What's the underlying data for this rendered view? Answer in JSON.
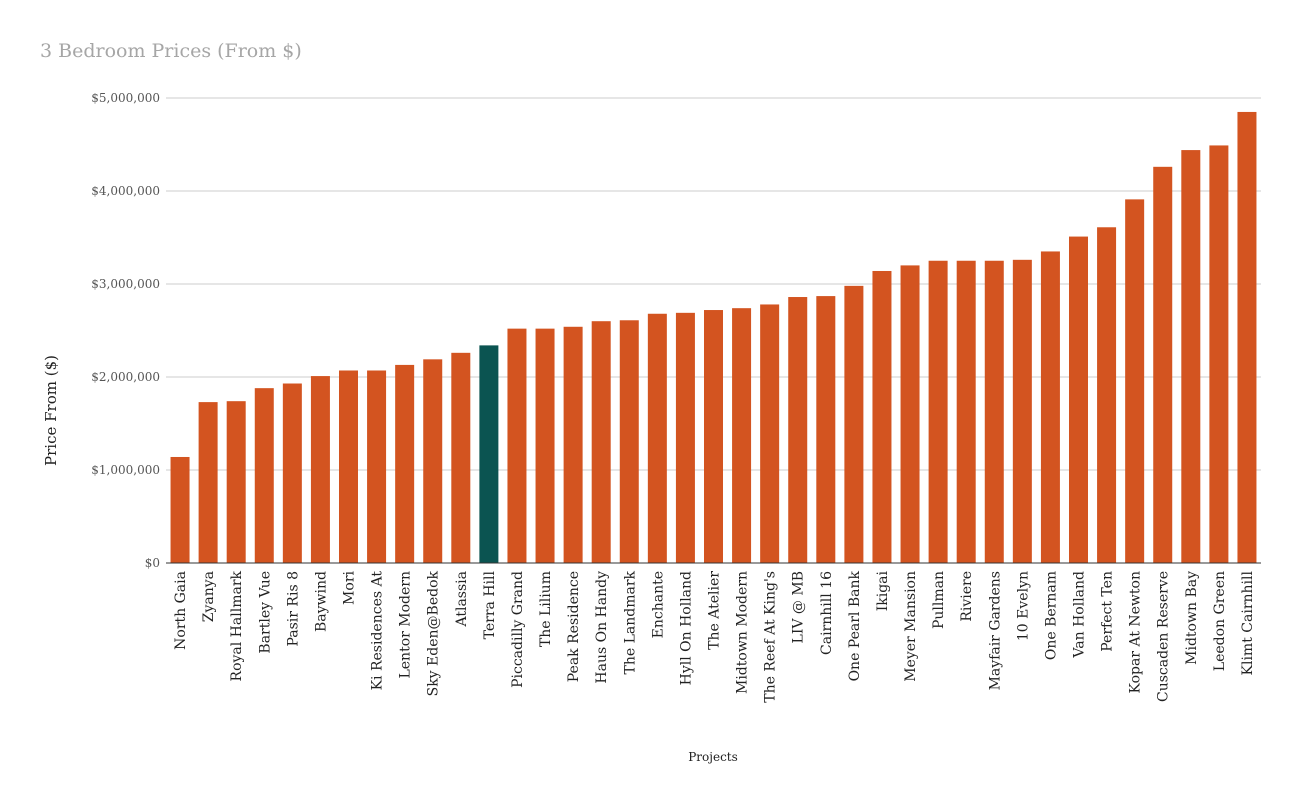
{
  "chart_data": {
    "type": "bar",
    "title": "3 Bedroom Prices (From $)",
    "xlabel": "Projects",
    "ylabel": "Price From ($)",
    "ylim": [
      0,
      5000000
    ],
    "yticks": [
      0,
      1000000,
      2000000,
      3000000,
      4000000,
      5000000
    ],
    "ytick_labels": [
      "$0",
      "$1,000,000",
      "$2,000,000",
      "$3,000,000",
      "$4,000,000",
      "$5,000,000"
    ],
    "grid": true,
    "colors": {
      "default": "#d35420",
      "highlight": "#0b5451",
      "grid": "#cccccc",
      "axis": "#333333"
    },
    "highlight_category": "Terra Hill",
    "categories": [
      "North Gaia",
      "Zyanya",
      "Royal Hallmark",
      "Bartley Vue",
      "Pasir Ris 8",
      "Baywind",
      "Mori",
      "Ki Residences At",
      "Lentor Modern",
      "Sky Eden@Bedok",
      "Atlassia",
      "Terra Hill",
      "Piccadilly Grand",
      "The Lilium",
      "Peak Residence",
      "Haus On Handy",
      "The Landmark",
      "Enchante",
      "Hyll On Holland",
      "The Atelier",
      "Midtown Modern",
      "The Reef At King's",
      "LIV @ MB",
      "Cairnhill 16",
      "One Pearl Bank",
      "Ikigai",
      "Meyer Mansion",
      "Pullman",
      "Riviere",
      "Mayfair Gardens",
      "10 Evelyn",
      "One Bernam",
      "Van Holland",
      "Perfect Ten",
      "Kopar At Newton",
      "Cuscaden Reserve",
      "Midtown Bay",
      "Leedon Green",
      "Klimt Cairnhill"
    ],
    "values": [
      1140000,
      1730000,
      1740000,
      1880000,
      1930000,
      2010000,
      2070000,
      2070000,
      2130000,
      2190000,
      2260000,
      2340000,
      2520000,
      2520000,
      2540000,
      2600000,
      2610000,
      2680000,
      2690000,
      2720000,
      2740000,
      2780000,
      2860000,
      2870000,
      2980000,
      3140000,
      3200000,
      3250000,
      3250000,
      3250000,
      3260000,
      3350000,
      3510000,
      3610000,
      3910000,
      4260000,
      4440000,
      4490000,
      4850000
    ]
  }
}
